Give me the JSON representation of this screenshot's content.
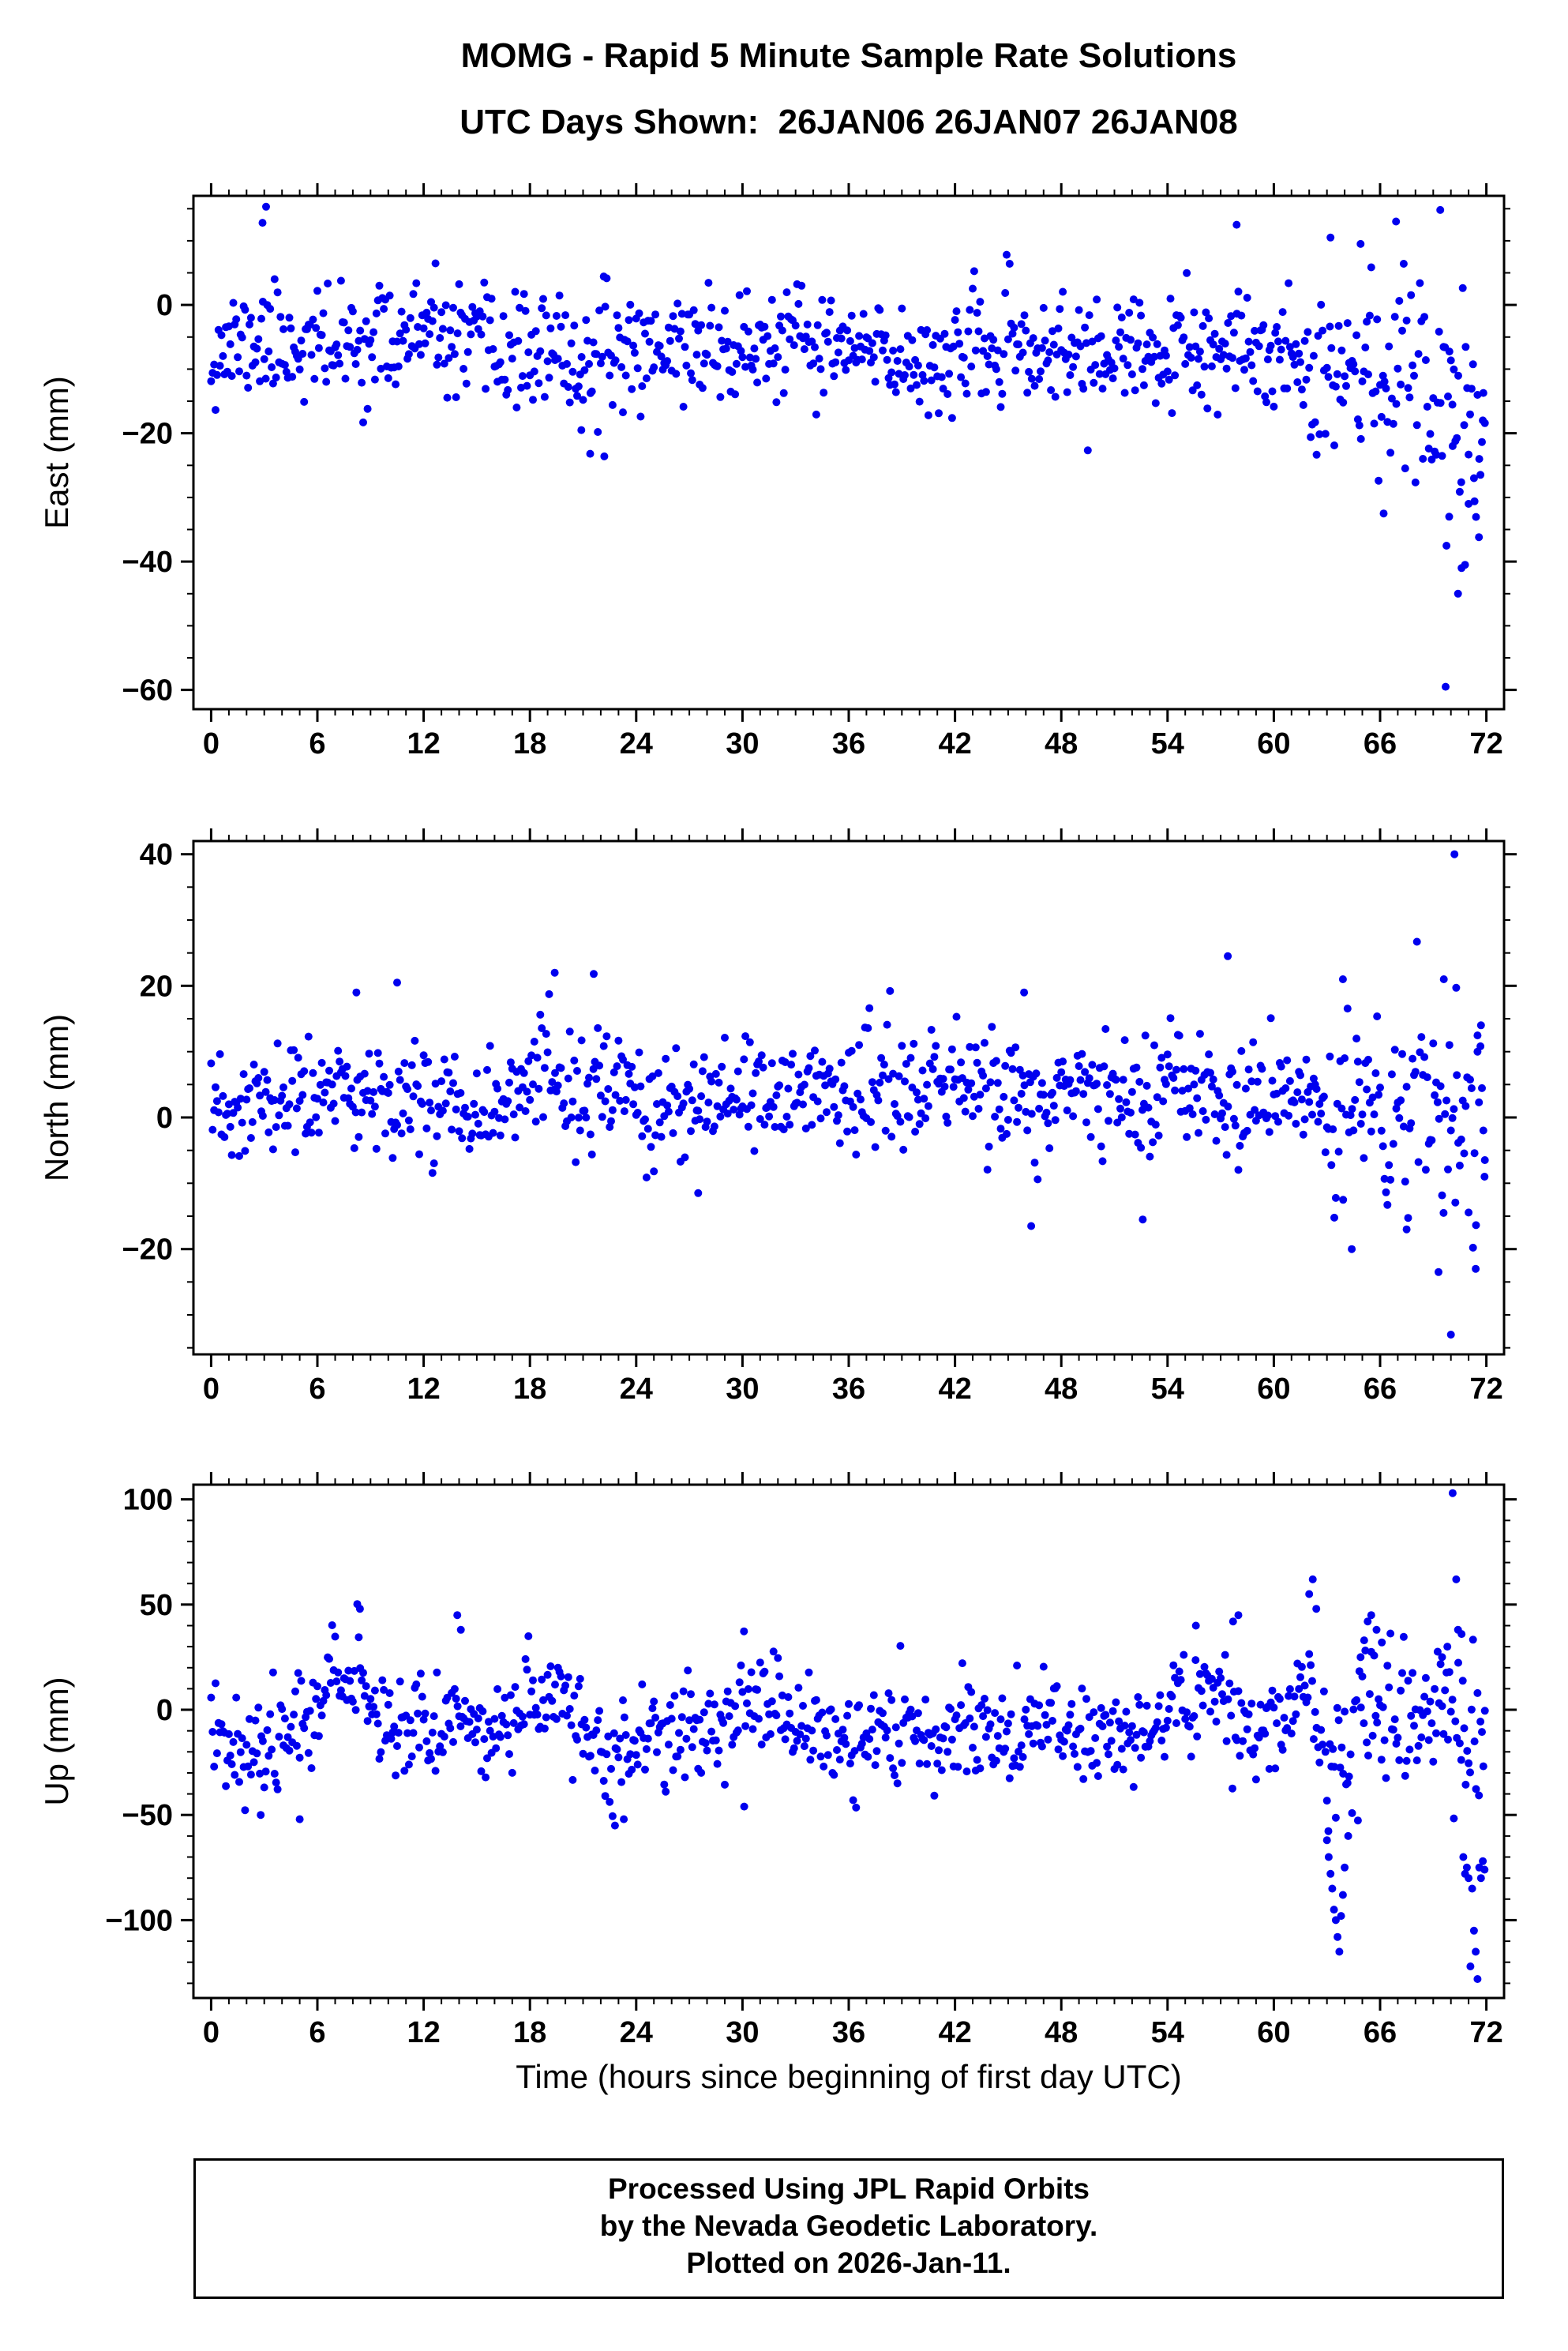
{
  "page": {
    "title_line1": "MOMG - Rapid 5 Minute Sample Rate Solutions",
    "title_line2": "UTC Days Shown:  26JAN06 26JAN07 26JAN08",
    "footer": {
      "line1": "Processed Using JPL Rapid Orbits",
      "line2": "by the Nevada Geodetic Laboratory.",
      "line3": "Plotted on 2026-Jan-11."
    }
  },
  "chart_data": {
    "type": "scatter",
    "title": "MOMG - Rapid 5 Minute Sample Rate Solutions",
    "subtitle": "UTC Days Shown:  26JAN06 26JAN07 26JAN08",
    "xlabel": "Time (hours since beginning of first day UTC)",
    "x_units": "hours",
    "utc_days": [
      "26JAN06",
      "26JAN07",
      "26JAN08"
    ],
    "sample_interval_minutes": 5,
    "grid": false,
    "legend": "none",
    "marker": {
      "color": "#0000ee",
      "radius": 5,
      "shape": "circle"
    },
    "panels": [
      {
        "id": "east",
        "ylabel": "East (mm)",
        "ylim": [
          -63,
          17
        ],
        "yticks": [
          -60,
          -40,
          -20,
          0
        ],
        "yminor": 5,
        "xlim": [
          -1,
          73
        ],
        "xticks": [
          0,
          6,
          12,
          18,
          24,
          30,
          36,
          42,
          48,
          54,
          60,
          66,
          72
        ],
        "xminor": 1,
        "n": 864,
        "dt": 0.08333333,
        "seed": 11,
        "baseline_anchors": [
          [
            0,
            -7
          ],
          [
            3,
            -5.5
          ],
          [
            6,
            -6.5
          ],
          [
            9,
            -6
          ],
          [
            12,
            -4.5
          ],
          [
            15,
            -7
          ],
          [
            18,
            -7.5
          ],
          [
            21,
            -9
          ],
          [
            24,
            -6.5
          ],
          [
            27,
            -6
          ],
          [
            30,
            -7
          ],
          [
            33,
            -6
          ],
          [
            36,
            -7
          ],
          [
            39,
            -8.5
          ],
          [
            42,
            -8
          ],
          [
            45,
            -7
          ],
          [
            48,
            -7.5
          ],
          [
            51,
            -8
          ],
          [
            54,
            -7.5
          ],
          [
            57,
            -8.5
          ],
          [
            60,
            -7
          ],
          [
            63,
            -9
          ],
          [
            66,
            -11
          ],
          [
            69,
            -13
          ],
          [
            72,
            -17
          ]
        ],
        "noise_segments": [
          {
            "from": -1,
            "std": 4.3
          },
          {
            "from": 62,
            "std": 6.5
          },
          {
            "from": 67,
            "std": 9
          }
        ],
        "outliers": [
          [
            2.9,
            12.8
          ],
          [
            3.1,
            15.3
          ],
          [
            20.9,
            -19.5
          ],
          [
            21.4,
            -23.2
          ],
          [
            22.2,
            -23.6
          ],
          [
            57.9,
            12.5
          ],
          [
            63.2,
            10.5
          ],
          [
            64.9,
            9.5
          ],
          [
            66.9,
            13.0
          ],
          [
            69.4,
            14.8
          ],
          [
            66.2,
            -32.5
          ],
          [
            69.7,
            -59.5
          ],
          [
            69.9,
            -33.0
          ],
          [
            70.1,
            -22.0
          ],
          [
            70.4,
            -45.0
          ],
          [
            70.6,
            -41.0
          ],
          [
            70.8,
            -40.5
          ],
          [
            71.0,
            -31.0
          ],
          [
            71.3,
            -27.0
          ],
          [
            71.6,
            -24.0
          ],
          [
            71.8,
            -18.0
          ]
        ]
      },
      {
        "id": "north",
        "ylabel": "North (mm)",
        "ylim": [
          -36,
          42
        ],
        "yticks": [
          -20,
          0,
          20,
          40
        ],
        "yminor": 5,
        "xlim": [
          -1,
          73
        ],
        "xticks": [
          0,
          6,
          12,
          18,
          24,
          30,
          36,
          42,
          48,
          54,
          60,
          66,
          72
        ],
        "xminor": 1,
        "n": 864,
        "dt": 0.08333333,
        "seed": 23,
        "baseline_anchors": [
          [
            0,
            -0.5
          ],
          [
            3,
            2
          ],
          [
            6,
            3
          ],
          [
            9,
            3.5
          ],
          [
            12,
            3
          ],
          [
            15,
            2.5
          ],
          [
            18,
            4.5
          ],
          [
            21,
            4
          ],
          [
            24,
            2.5
          ],
          [
            27,
            0.5
          ],
          [
            30,
            2
          ],
          [
            33,
            4
          ],
          [
            36,
            5
          ],
          [
            39,
            4
          ],
          [
            42,
            5
          ],
          [
            45,
            3.5
          ],
          [
            48,
            3
          ],
          [
            51,
            3
          ],
          [
            54,
            3.5
          ],
          [
            57,
            2.5
          ],
          [
            60,
            2.5
          ],
          [
            63,
            1.5
          ],
          [
            66,
            0.5
          ],
          [
            69,
            0
          ],
          [
            72,
            0
          ]
        ],
        "noise_segments": [
          {
            "from": -1,
            "std": 4.4
          },
          {
            "from": 62,
            "std": 6
          },
          {
            "from": 68,
            "std": 8
          }
        ],
        "outliers": [
          [
            8.2,
            19.0
          ],
          [
            10.5,
            20.5
          ],
          [
            19.4,
            22.0
          ],
          [
            21.6,
            21.8
          ],
          [
            45.9,
            19.0
          ],
          [
            57.4,
            24.5
          ],
          [
            63.9,
            21.0
          ],
          [
            69.6,
            21.0
          ],
          [
            70.2,
            40.0
          ],
          [
            70.3,
            19.7
          ],
          [
            27.5,
            -11.5
          ],
          [
            46.3,
            -16.5
          ],
          [
            52.6,
            -15.5
          ],
          [
            64.4,
            -20.0
          ],
          [
            67.5,
            -17.0
          ],
          [
            69.3,
            -23.5
          ],
          [
            70.0,
            -33.0
          ],
          [
            71.4,
            -23.0
          ],
          [
            71.9,
            -9.0
          ],
          [
            71.7,
            14.0
          ],
          [
            71.5,
            10.0
          ]
        ]
      },
      {
        "id": "up",
        "ylabel": "Up (mm)",
        "ylim": [
          -137,
          107
        ],
        "yticks": [
          -100,
          -50,
          0,
          50,
          100
        ],
        "yminor": 10,
        "xlim": [
          -1,
          73
        ],
        "xticks": [
          0,
          6,
          12,
          18,
          24,
          30,
          36,
          42,
          48,
          54,
          60,
          66,
          72
        ],
        "xminor": 1,
        "n": 864,
        "dt": 0.08333333,
        "seed": 37,
        "baseline_anchors": [
          [
            0,
            -8
          ],
          [
            1,
            -12
          ],
          [
            2,
            -18
          ],
          [
            3,
            -22
          ],
          [
            4,
            -12
          ],
          [
            5,
            -2
          ],
          [
            6,
            8
          ],
          [
            7,
            14
          ],
          [
            8,
            16
          ],
          [
            9,
            4
          ],
          [
            10,
            -4
          ],
          [
            11,
            -6
          ],
          [
            12,
            -8
          ],
          [
            13,
            -4
          ],
          [
            14,
            -2
          ],
          [
            15,
            -8
          ],
          [
            16,
            -12
          ],
          [
            17,
            -6
          ],
          [
            18,
            2
          ],
          [
            19,
            6
          ],
          [
            20,
            4
          ],
          [
            21,
            -6
          ],
          [
            22,
            -18
          ],
          [
            23,
            -26
          ],
          [
            24,
            -16
          ],
          [
            25,
            -8
          ],
          [
            26,
            -6
          ],
          [
            27,
            -10
          ],
          [
            28,
            -14
          ],
          [
            29,
            -6
          ],
          [
            30,
            2
          ],
          [
            31,
            6
          ],
          [
            32,
            0
          ],
          [
            33,
            -6
          ],
          [
            34,
            -10
          ],
          [
            35,
            -14
          ],
          [
            36,
            -18
          ],
          [
            37,
            -16
          ],
          [
            38,
            -10
          ],
          [
            39,
            -6
          ],
          [
            40,
            -10
          ],
          [
            41,
            -12
          ],
          [
            42,
            -8
          ],
          [
            43,
            -6
          ],
          [
            44,
            -10
          ],
          [
            45,
            -14
          ],
          [
            46,
            -12
          ],
          [
            47,
            -8
          ],
          [
            48,
            -6
          ],
          [
            49,
            -10
          ],
          [
            50,
            -12
          ],
          [
            51,
            -10
          ],
          [
            52,
            -12
          ],
          [
            53,
            -8
          ],
          [
            54,
            -4
          ],
          [
            55,
            4
          ],
          [
            56,
            8
          ],
          [
            57,
            4
          ],
          [
            58,
            -6
          ],
          [
            59,
            -10
          ],
          [
            60,
            -4
          ],
          [
            61,
            2
          ],
          [
            62,
            6
          ],
          [
            63,
            -20
          ],
          [
            64,
            -30
          ],
          [
            65,
            0
          ],
          [
            66,
            8
          ],
          [
            67,
            0
          ],
          [
            68,
            -6
          ],
          [
            69,
            -4
          ],
          [
            70,
            0
          ],
          [
            71,
            -10
          ],
          [
            72,
            -8
          ]
        ],
        "noise_segments": [
          {
            "from": -1,
            "std": 12
          },
          {
            "from": 61,
            "std": 16
          },
          {
            "from": 69,
            "std": 20
          }
        ],
        "outliers": [
          [
            8.4,
            48
          ],
          [
            13.9,
            45
          ],
          [
            14.1,
            38
          ],
          [
            2.8,
            -50
          ],
          [
            5.0,
            -52
          ],
          [
            22.8,
            -55
          ],
          [
            23.3,
            -52
          ],
          [
            30.1,
            -46
          ],
          [
            55.6,
            40
          ],
          [
            57.7,
            42
          ],
          [
            58.0,
            45
          ],
          [
            62.0,
            55
          ],
          [
            62.2,
            62
          ],
          [
            62.4,
            48
          ],
          [
            63.0,
            -62
          ],
          [
            63.1,
            -70
          ],
          [
            63.2,
            -78
          ],
          [
            63.3,
            -85
          ],
          [
            63.4,
            -95
          ],
          [
            63.5,
            -100
          ],
          [
            63.6,
            -108
          ],
          [
            63.7,
            -115
          ],
          [
            63.8,
            -98
          ],
          [
            63.9,
            -88
          ],
          [
            64.0,
            -75
          ],
          [
            64.2,
            -60
          ],
          [
            64.9,
            25
          ],
          [
            65.1,
            33
          ],
          [
            65.3,
            42
          ],
          [
            65.5,
            45
          ],
          [
            65.8,
            38
          ],
          [
            66.1,
            32
          ],
          [
            69.5,
            25
          ],
          [
            69.8,
            30
          ],
          [
            70.1,
            103
          ],
          [
            70.3,
            62
          ],
          [
            70.4,
            38
          ],
          [
            70.6,
            36
          ],
          [
            70.7,
            -70
          ],
          [
            70.8,
            -78
          ],
          [
            70.9,
            -75
          ],
          [
            71.0,
            -80
          ],
          [
            71.1,
            -122
          ],
          [
            71.2,
            -85
          ],
          [
            71.3,
            -105
          ],
          [
            71.4,
            -115
          ],
          [
            71.5,
            -128
          ],
          [
            71.6,
            -75
          ],
          [
            71.7,
            -80
          ],
          [
            71.8,
            -72
          ],
          [
            71.9,
            -76
          ]
        ]
      }
    ]
  }
}
